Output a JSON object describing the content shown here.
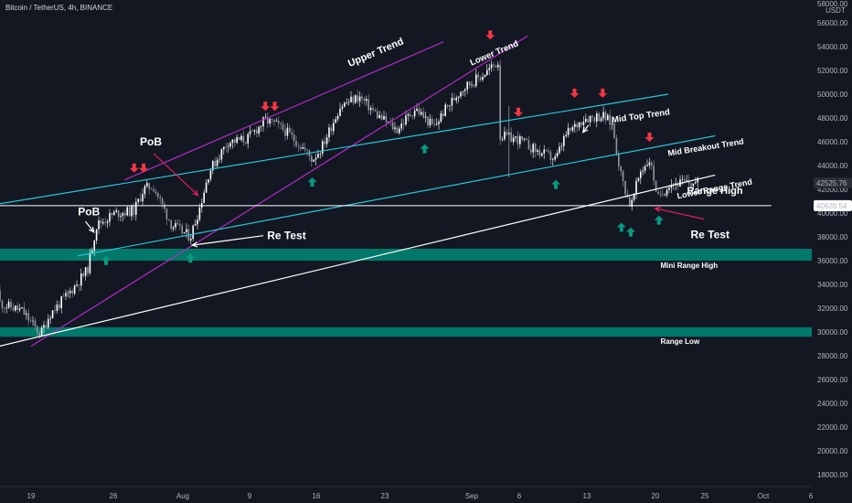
{
  "symbol_line": "Bitcoin / TetherUS, 4h, BINANCE",
  "currency": "USDT",
  "price_axis": {
    "top_label": "58000.00",
    "ticks": [
      56000,
      54000,
      52000,
      50000,
      48000,
      46000,
      44000,
      42000,
      40000,
      38000,
      36000,
      34000,
      32000,
      30000,
      28000,
      26000,
      24000,
      22000,
      20000,
      18000
    ]
  },
  "price_tags": [
    {
      "value": "42525.76",
      "color": "#2a2e39",
      "price": 42525.76
    },
    {
      "value": "40620.54",
      "color": "#ffffff",
      "price": 40620.54
    }
  ],
  "time_axis": {
    "labels": [
      "19",
      "26",
      "Aug",
      "9",
      "16",
      "23",
      "Sep",
      "6",
      "13",
      "20",
      "25",
      "Oct",
      "6"
    ]
  },
  "zones": [
    {
      "name": "mini-range-high-zone",
      "from": 36000,
      "to": 37000,
      "color": "#00796b"
    },
    {
      "name": "range-low-zone",
      "from": 29600,
      "to": 30400,
      "color": "#00796b"
    }
  ],
  "annotations": {
    "upper_trend": "Upper Trend",
    "lower_trend": "Lower Trend",
    "mid_top_trend": "Mid Top Trend",
    "mid_breakout_trend": "Mid Breakout Trend",
    "lower_range_trend": "Lower Range Trend",
    "range_high": "Range High",
    "mini_range_high": "Mini Range High",
    "range_low": "Range Low",
    "pob_top": "PoB",
    "pob_left": "PoB",
    "retest_white": "Re Test",
    "retest_pink": "Re Test"
  },
  "colors": {
    "background": "#131722",
    "purple_trend": "#b02cc4",
    "cyan_trend": "#26c6da",
    "range_line": "#ffffff",
    "zone": "#00796b",
    "up_arrow": "#089981",
    "down_arrow": "#f23645",
    "pink": "#e91e63",
    "candle_up": "#ffffff",
    "candle_down": "#9598a1"
  },
  "chart_data": {
    "type": "candlestick",
    "title": "Bitcoin / TetherUS, 4h, BINANCE",
    "ylim": [
      17000,
      58000
    ],
    "x_range": [
      "Jul 14",
      "Oct 6"
    ],
    "grid": false,
    "price_path": [
      {
        "x": "Jul 14",
        "y": 33500
      },
      {
        "x": "Jul 16",
        "y": 32300
      },
      {
        "x": "Jul 18",
        "y": 31800
      },
      {
        "x": "Jul 20",
        "y": 29800
      },
      {
        "x": "Jul 21",
        "y": 31500
      },
      {
        "x": "Jul 23",
        "y": 33200
      },
      {
        "x": "Jul 25",
        "y": 35200
      },
      {
        "x": "Jul 26",
        "y": 39000
      },
      {
        "x": "Jul 28",
        "y": 40000
      },
      {
        "x": "Jul 30",
        "y": 40200
      },
      {
        "x": "Jul 31",
        "y": 42000
      },
      {
        "x": "Aug 1",
        "y": 42300
      },
      {
        "x": "Aug 3",
        "y": 39000
      },
      {
        "x": "Aug 4",
        "y": 38500
      },
      {
        "x": "Aug 5",
        "y": 38000
      },
      {
        "x": "Aug 6",
        "y": 40500
      },
      {
        "x": "Aug 7",
        "y": 43500
      },
      {
        "x": "Aug 9",
        "y": 46000
      },
      {
        "x": "Aug 11",
        "y": 46200
      },
      {
        "x": "Aug 13",
        "y": 47800
      },
      {
        "x": "Aug 14",
        "y": 47500
      },
      {
        "x": "Aug 15",
        "y": 47000
      },
      {
        "x": "Aug 17",
        "y": 45500
      },
      {
        "x": "Aug 18",
        "y": 44500
      },
      {
        "x": "Aug 19",
        "y": 45500
      },
      {
        "x": "Aug 21",
        "y": 49000
      },
      {
        "x": "Aug 23",
        "y": 49800
      },
      {
        "x": "Aug 25",
        "y": 48200
      },
      {
        "x": "Aug 27",
        "y": 47000
      },
      {
        "x": "Aug 29",
        "y": 48800
      },
      {
        "x": "Aug 31",
        "y": 47200
      },
      {
        "x": "Sep 1",
        "y": 48500
      },
      {
        "x": "Sep 3",
        "y": 50500
      },
      {
        "x": "Sep 5",
        "y": 51500
      },
      {
        "x": "Sep 7",
        "y": 52800
      },
      {
        "x": "Sep 7",
        "y": 46500
      },
      {
        "x": "Sep 9",
        "y": 46200
      },
      {
        "x": "Sep 11",
        "y": 45200
      },
      {
        "x": "Sep 13",
        "y": 44500
      },
      {
        "x": "Sep 14",
        "y": 46500
      },
      {
        "x": "Sep 16",
        "y": 48000
      },
      {
        "x": "Sep 18",
        "y": 48200
      },
      {
        "x": "Sep 19",
        "y": 47500
      },
      {
        "x": "Sep 20",
        "y": 43000
      },
      {
        "x": "Sep 21",
        "y": 40500
      },
      {
        "x": "Sep 22",
        "y": 43500
      },
      {
        "x": "Sep 23",
        "y": 44500
      },
      {
        "x": "Sep 24",
        "y": 41000
      },
      {
        "x": "Sep 25",
        "y": 42500
      },
      {
        "x": "Sep 26",
        "y": 42525.76
      }
    ],
    "trend_lines": [
      {
        "name": "Upper Trend",
        "color": "#b02cc4",
        "from": [
          "Jul 29",
          42800
        ],
        "to": [
          "Sep 1",
          54400
        ]
      },
      {
        "name": "Lower Trend",
        "color": "#b02cc4",
        "from": [
          "Jul 19",
          28800
        ],
        "to": [
          "Sep 10",
          54900
        ]
      },
      {
        "name": "Mid Top Trend",
        "color": "#26c6da",
        "from": [
          "Jul 15",
          40700
        ],
        "to": [
          "Sep 25",
          50000
        ]
      },
      {
        "name": "Mid Breakout Trend",
        "color": "#26c6da",
        "from": [
          "Jul 24",
          36400
        ],
        "to": [
          "Sep 30",
          46500
        ]
      },
      {
        "name": "Lower Range Trend",
        "color": "#ffffff",
        "from": [
          "Jul 14",
          28500
        ],
        "to": [
          "Sep 30",
          43200
        ]
      },
      {
        "name": "Range High",
        "color": "#ffffff",
        "from": [
          "Jul 14",
          40620.54
        ],
        "to": [
          "Oct 6",
          40620.54
        ]
      }
    ],
    "zones": [
      {
        "name": "Mini Range High",
        "ylim": [
          36000,
          37000
        ]
      },
      {
        "name": "Range Low",
        "ylim": [
          29600,
          30400
        ]
      }
    ],
    "sell_signals": [
      "Jul 30",
      "Jul 31",
      "Aug 13",
      "Aug 14",
      "Sep 6",
      "Sep 9",
      "Sep 15",
      "Sep 18",
      "Sep 23"
    ],
    "buy_signals": [
      "Jul 27",
      "Aug 5",
      "Aug 18",
      "Aug 30",
      "Sep 13",
      "Sep 20",
      "Sep 21",
      "Sep 24"
    ]
  }
}
